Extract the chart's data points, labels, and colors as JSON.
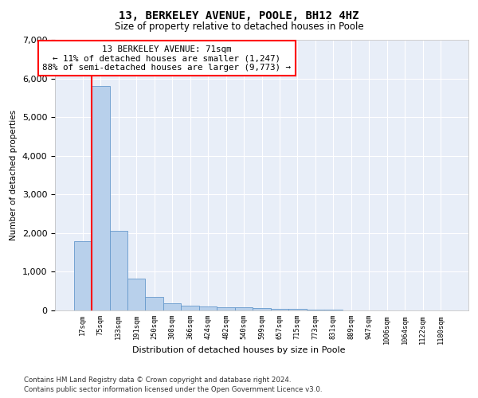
{
  "title1": "13, BERKELEY AVENUE, POOLE, BH12 4HZ",
  "title2": "Size of property relative to detached houses in Poole",
  "xlabel": "Distribution of detached houses by size in Poole",
  "ylabel": "Number of detached properties",
  "bar_labels": [
    "17sqm",
    "75sqm",
    "133sqm",
    "191sqm",
    "250sqm",
    "308sqm",
    "366sqm",
    "424sqm",
    "482sqm",
    "540sqm",
    "599sqm",
    "657sqm",
    "715sqm",
    "773sqm",
    "831sqm",
    "889sqm",
    "947sqm",
    "1006sqm",
    "1064sqm",
    "1122sqm",
    "1180sqm"
  ],
  "bar_values": [
    1800,
    5800,
    2050,
    820,
    340,
    190,
    120,
    105,
    90,
    75,
    55,
    45,
    35,
    25,
    15,
    10,
    8,
    5,
    4,
    3,
    2
  ],
  "bar_color": "#b8d0eb",
  "bar_edge_color": "#6699cc",
  "annotation_text": "13 BERKELEY AVENUE: 71sqm\n← 11% of detached houses are smaller (1,247)\n88% of semi-detached houses are larger (9,773) →",
  "annotation_box_color": "white",
  "annotation_box_edge_color": "red",
  "vline_color": "red",
  "vline_x": 0.5,
  "ylim": [
    0,
    7000
  ],
  "yticks": [
    0,
    1000,
    2000,
    3000,
    4000,
    5000,
    6000,
    7000
  ],
  "footer1": "Contains HM Land Registry data © Crown copyright and database right 2024.",
  "footer2": "Contains public sector information licensed under the Open Government Licence v3.0.",
  "plot_bg_color": "#e8eef8",
  "grid_color": "white"
}
